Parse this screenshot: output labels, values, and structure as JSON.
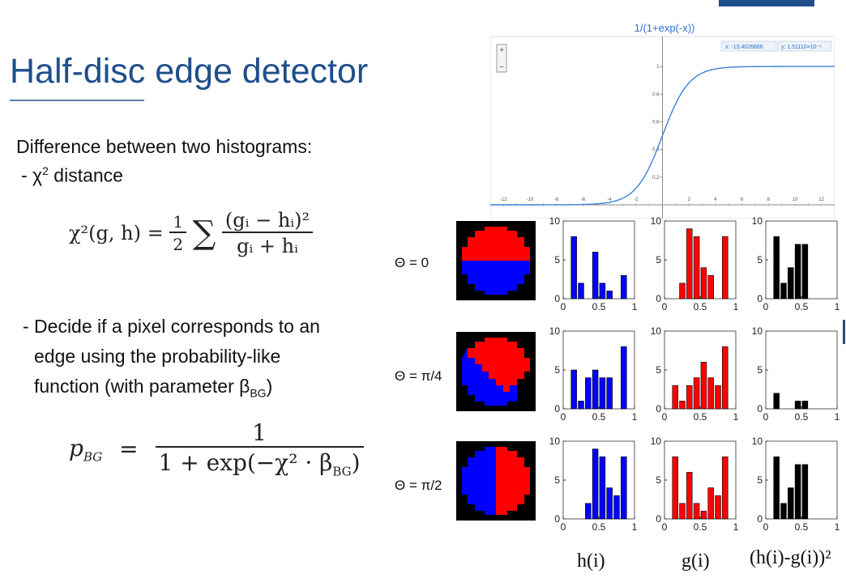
{
  "slide": {
    "title": "Half-disc edge detector",
    "intro": "Difference between two histograms:",
    "bullet1_prefix": "- χ",
    "bullet1_sup": "2",
    "bullet1_suffix": " distance",
    "bullet2_line1": "- Decide if a pixel corresponds to an",
    "bullet2_line2": "edge using the probability-like",
    "bullet2_line3_prefix": "function (with parameter β",
    "bullet2_line3_sub": "BG",
    "bullet2_line3_suffix": ")"
  },
  "formula_chi": {
    "lhs": "χ²(g, h) = ",
    "half_num": "1",
    "half_den": "2",
    "sum": "∑",
    "num": "(gᵢ − hᵢ)²",
    "den": "gᵢ + hᵢ"
  },
  "formula_p": {
    "lhs": "p",
    "lhs_sub": "BG",
    "eq": "=",
    "num": "1",
    "den": "1 + exp(−χ² · β",
    "den_sub": "BG",
    "den_close": ")"
  },
  "sigmoid": {
    "title": "1/(1+exp(-x))",
    "readout_x": "x: -13.4026866",
    "readout_y": "y: 1.51110×10⁻⁶",
    "x_ticks": [
      -12,
      -10,
      -8,
      -6,
      -4,
      -2,
      2,
      4,
      6,
      8,
      10,
      12
    ],
    "y_ticks": [
      0.2,
      0.4,
      0.6,
      0.8,
      1
    ],
    "zoom_in": "+",
    "zoom_out": "−"
  },
  "rows": [
    {
      "theta": "Θ = 0"
    },
    {
      "theta": "Θ = π/4"
    },
    {
      "theta": "Θ = π/2"
    }
  ],
  "captions": {
    "h": "h(i)",
    "g": "g(i)",
    "diff": "(h(i)-g(i))²"
  },
  "colors": {
    "accent": "#1f4e8c",
    "blue": "#0000ff",
    "red": "#ff0000",
    "black": "#000000",
    "curve": "#3b82d6"
  },
  "chart_data": [
    {
      "type": "bar",
      "row": "Θ = 0",
      "name": "h(i)",
      "x": [
        0.15,
        0.25,
        0.35,
        0.45,
        0.55,
        0.65,
        0.75,
        0.85
      ],
      "values": [
        8,
        2,
        0,
        6,
        2,
        1,
        0,
        3
      ],
      "ylim": [
        0,
        10
      ],
      "xlim": [
        0,
        1
      ],
      "xticks": [
        0,
        0.5,
        1
      ],
      "yticks": [
        0,
        5,
        10
      ]
    },
    {
      "type": "bar",
      "row": "Θ = 0",
      "name": "g(i)",
      "x": [
        0.25,
        0.35,
        0.45,
        0.55,
        0.65,
        0.75,
        0.85
      ],
      "values": [
        2,
        9,
        8,
        4,
        3,
        0,
        8
      ],
      "ylim": [
        0,
        10
      ],
      "xlim": [
        0,
        1
      ],
      "xticks": [
        0,
        0.5,
        1
      ],
      "yticks": [
        0,
        5,
        10
      ]
    },
    {
      "type": "bar",
      "row": "Θ = 0",
      "name": "(h(i)-g(i))²",
      "x": [
        0.15,
        0.25,
        0.35,
        0.45,
        0.55
      ],
      "values": [
        8,
        2,
        4,
        7,
        7
      ],
      "ylim": [
        0,
        10
      ],
      "xlim": [
        0,
        1
      ],
      "xticks": [
        0,
        0.5,
        1
      ],
      "yticks": [
        0,
        5,
        10
      ]
    },
    {
      "type": "bar",
      "row": "Θ = π/4",
      "name": "h(i)",
      "x": [
        0.15,
        0.25,
        0.35,
        0.45,
        0.55,
        0.65,
        0.75,
        0.85
      ],
      "values": [
        5,
        1,
        4,
        5,
        4,
        4,
        0,
        8
      ],
      "ylim": [
        0,
        10
      ],
      "xlim": [
        0,
        1
      ],
      "xticks": [
        0,
        0.5,
        1
      ],
      "yticks": [
        0,
        5,
        10
      ]
    },
    {
      "type": "bar",
      "row": "Θ = π/4",
      "name": "g(i)",
      "x": [
        0.15,
        0.25,
        0.35,
        0.45,
        0.55,
        0.65,
        0.75,
        0.85
      ],
      "values": [
        3,
        1,
        3,
        4,
        6,
        4,
        3,
        8
      ],
      "ylim": [
        0,
        10
      ],
      "xlim": [
        0,
        1
      ],
      "xticks": [
        0,
        0.5,
        1
      ],
      "yticks": [
        0,
        5,
        10
      ]
    },
    {
      "type": "bar",
      "row": "Θ = π/4",
      "name": "(h(i)-g(i))²",
      "x": [
        0.15,
        0.45,
        0.55
      ],
      "values": [
        2,
        1,
        1
      ],
      "ylim": [
        0,
        10
      ],
      "xlim": [
        0,
        1
      ],
      "xticks": [
        0,
        0.5,
        1
      ],
      "yticks": [
        0,
        5,
        10
      ]
    },
    {
      "type": "bar",
      "row": "Θ = π/2",
      "name": "h(i)",
      "x": [
        0.35,
        0.45,
        0.55,
        0.65,
        0.75,
        0.85
      ],
      "values": [
        2,
        9,
        8,
        4,
        3,
        8
      ],
      "ylim": [
        0,
        10
      ],
      "xlim": [
        0,
        1
      ],
      "xticks": [
        0,
        0.5,
        1
      ],
      "yticks": [
        0,
        5,
        10
      ]
    },
    {
      "type": "bar",
      "row": "Θ = π/2",
      "name": "g(i)",
      "x": [
        0.15,
        0.25,
        0.35,
        0.45,
        0.55,
        0.65,
        0.75,
        0.85
      ],
      "values": [
        8,
        2,
        6,
        2,
        1,
        4,
        3,
        8
      ],
      "ylim": [
        0,
        10
      ],
      "xlim": [
        0,
        1
      ],
      "xticks": [
        0,
        0.5,
        1
      ],
      "yticks": [
        0,
        5,
        10
      ]
    },
    {
      "type": "bar",
      "row": "Θ = π/2",
      "name": "(h(i)-g(i))²",
      "x": [
        0.15,
        0.25,
        0.35,
        0.45,
        0.55
      ],
      "values": [
        8,
        2,
        4,
        7,
        7
      ],
      "ylim": [
        0,
        10
      ],
      "xlim": [
        0,
        1
      ],
      "xticks": [
        0,
        0.5,
        1
      ],
      "yticks": [
        0,
        5,
        10
      ]
    },
    {
      "type": "line",
      "name": "1/(1+exp(-x))",
      "function": "sigmoid",
      "xlim": [
        -13,
        13
      ],
      "ylim": [
        0,
        1.1
      ],
      "xticks": [
        -12,
        -10,
        -8,
        -6,
        -4,
        -2,
        2,
        4,
        6,
        8,
        10,
        12
      ],
      "yticks": [
        0.2,
        0.4,
        0.6,
        0.8,
        1
      ]
    }
  ]
}
